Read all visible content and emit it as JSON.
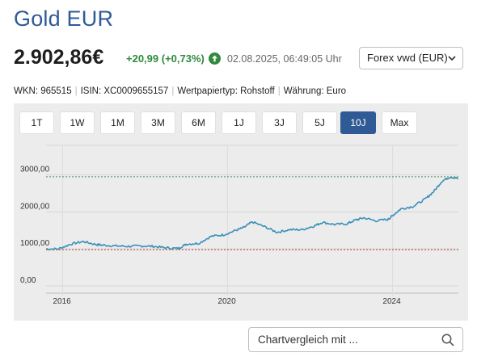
{
  "instrument": {
    "title": "Gold EUR",
    "price": "2.902,86€",
    "change": "+20,99 (+0,73%)",
    "timestamp": "02.08.2025, 06:49:05 Uhr",
    "trend_icon": "arrow-up-circle-icon"
  },
  "exchange_select": {
    "value": "Forex vwd (EUR)"
  },
  "meta": {
    "wkn": "WKN: 965515",
    "isin": "ISIN: XC0009655157",
    "type": "Wertpapiertyp: Rohstoff",
    "currency": "Währung: Euro"
  },
  "ranges": [
    "1T",
    "1W",
    "1M",
    "3M",
    "6M",
    "1J",
    "3J",
    "5J",
    "10J",
    "Max"
  ],
  "active_range": "10J",
  "compare": {
    "placeholder": "Chartvergleich mit ..."
  },
  "colors": {
    "brand": "#2f5a95",
    "positive": "#2f8a3e",
    "line": "#3a90b8",
    "high_line": "#4a8f62",
    "low_line": "#c0392b"
  },
  "chart_data": {
    "type": "line",
    "x_ticks": [
      "2016",
      "2020",
      "2024"
    ],
    "y_ticks": [
      "0,00",
      "1000,00",
      "2000,00",
      "3000,00"
    ],
    "ylim": [
      0,
      3800
    ],
    "xlim": [
      2015.6,
      2025.6
    ],
    "reference_lines": [
      {
        "kind": "high",
        "value": 2950
      },
      {
        "kind": "low",
        "value": 980
      }
    ],
    "series": [
      {
        "x": [
          2015.6,
          2015.9,
          2016.2,
          2016.5,
          2016.8,
          2017.0,
          2017.3,
          2017.6,
          2017.9,
          2018.2,
          2018.5,
          2018.8,
          2019.0,
          2019.3,
          2019.6,
          2019.9,
          2020.2,
          2020.4,
          2020.6,
          2020.9,
          2021.2,
          2021.5,
          2021.8,
          2022.1,
          2022.3,
          2022.6,
          2022.9,
          2023.1,
          2023.3,
          2023.6,
          2023.9,
          2024.0,
          2024.2,
          2024.5,
          2024.8,
          2025.0,
          2025.2,
          2025.4,
          2025.6
        ],
        "y": [
          1000,
          1000,
          1130,
          1200,
          1120,
          1100,
          1080,
          1070,
          1080,
          1070,
          1030,
          1010,
          1130,
          1150,
          1340,
          1380,
          1500,
          1580,
          1730,
          1600,
          1450,
          1520,
          1520,
          1620,
          1720,
          1660,
          1680,
          1780,
          1840,
          1760,
          1800,
          1900,
          2080,
          2150,
          2350,
          2550,
          2830,
          2950,
          2902
        ]
      }
    ]
  }
}
